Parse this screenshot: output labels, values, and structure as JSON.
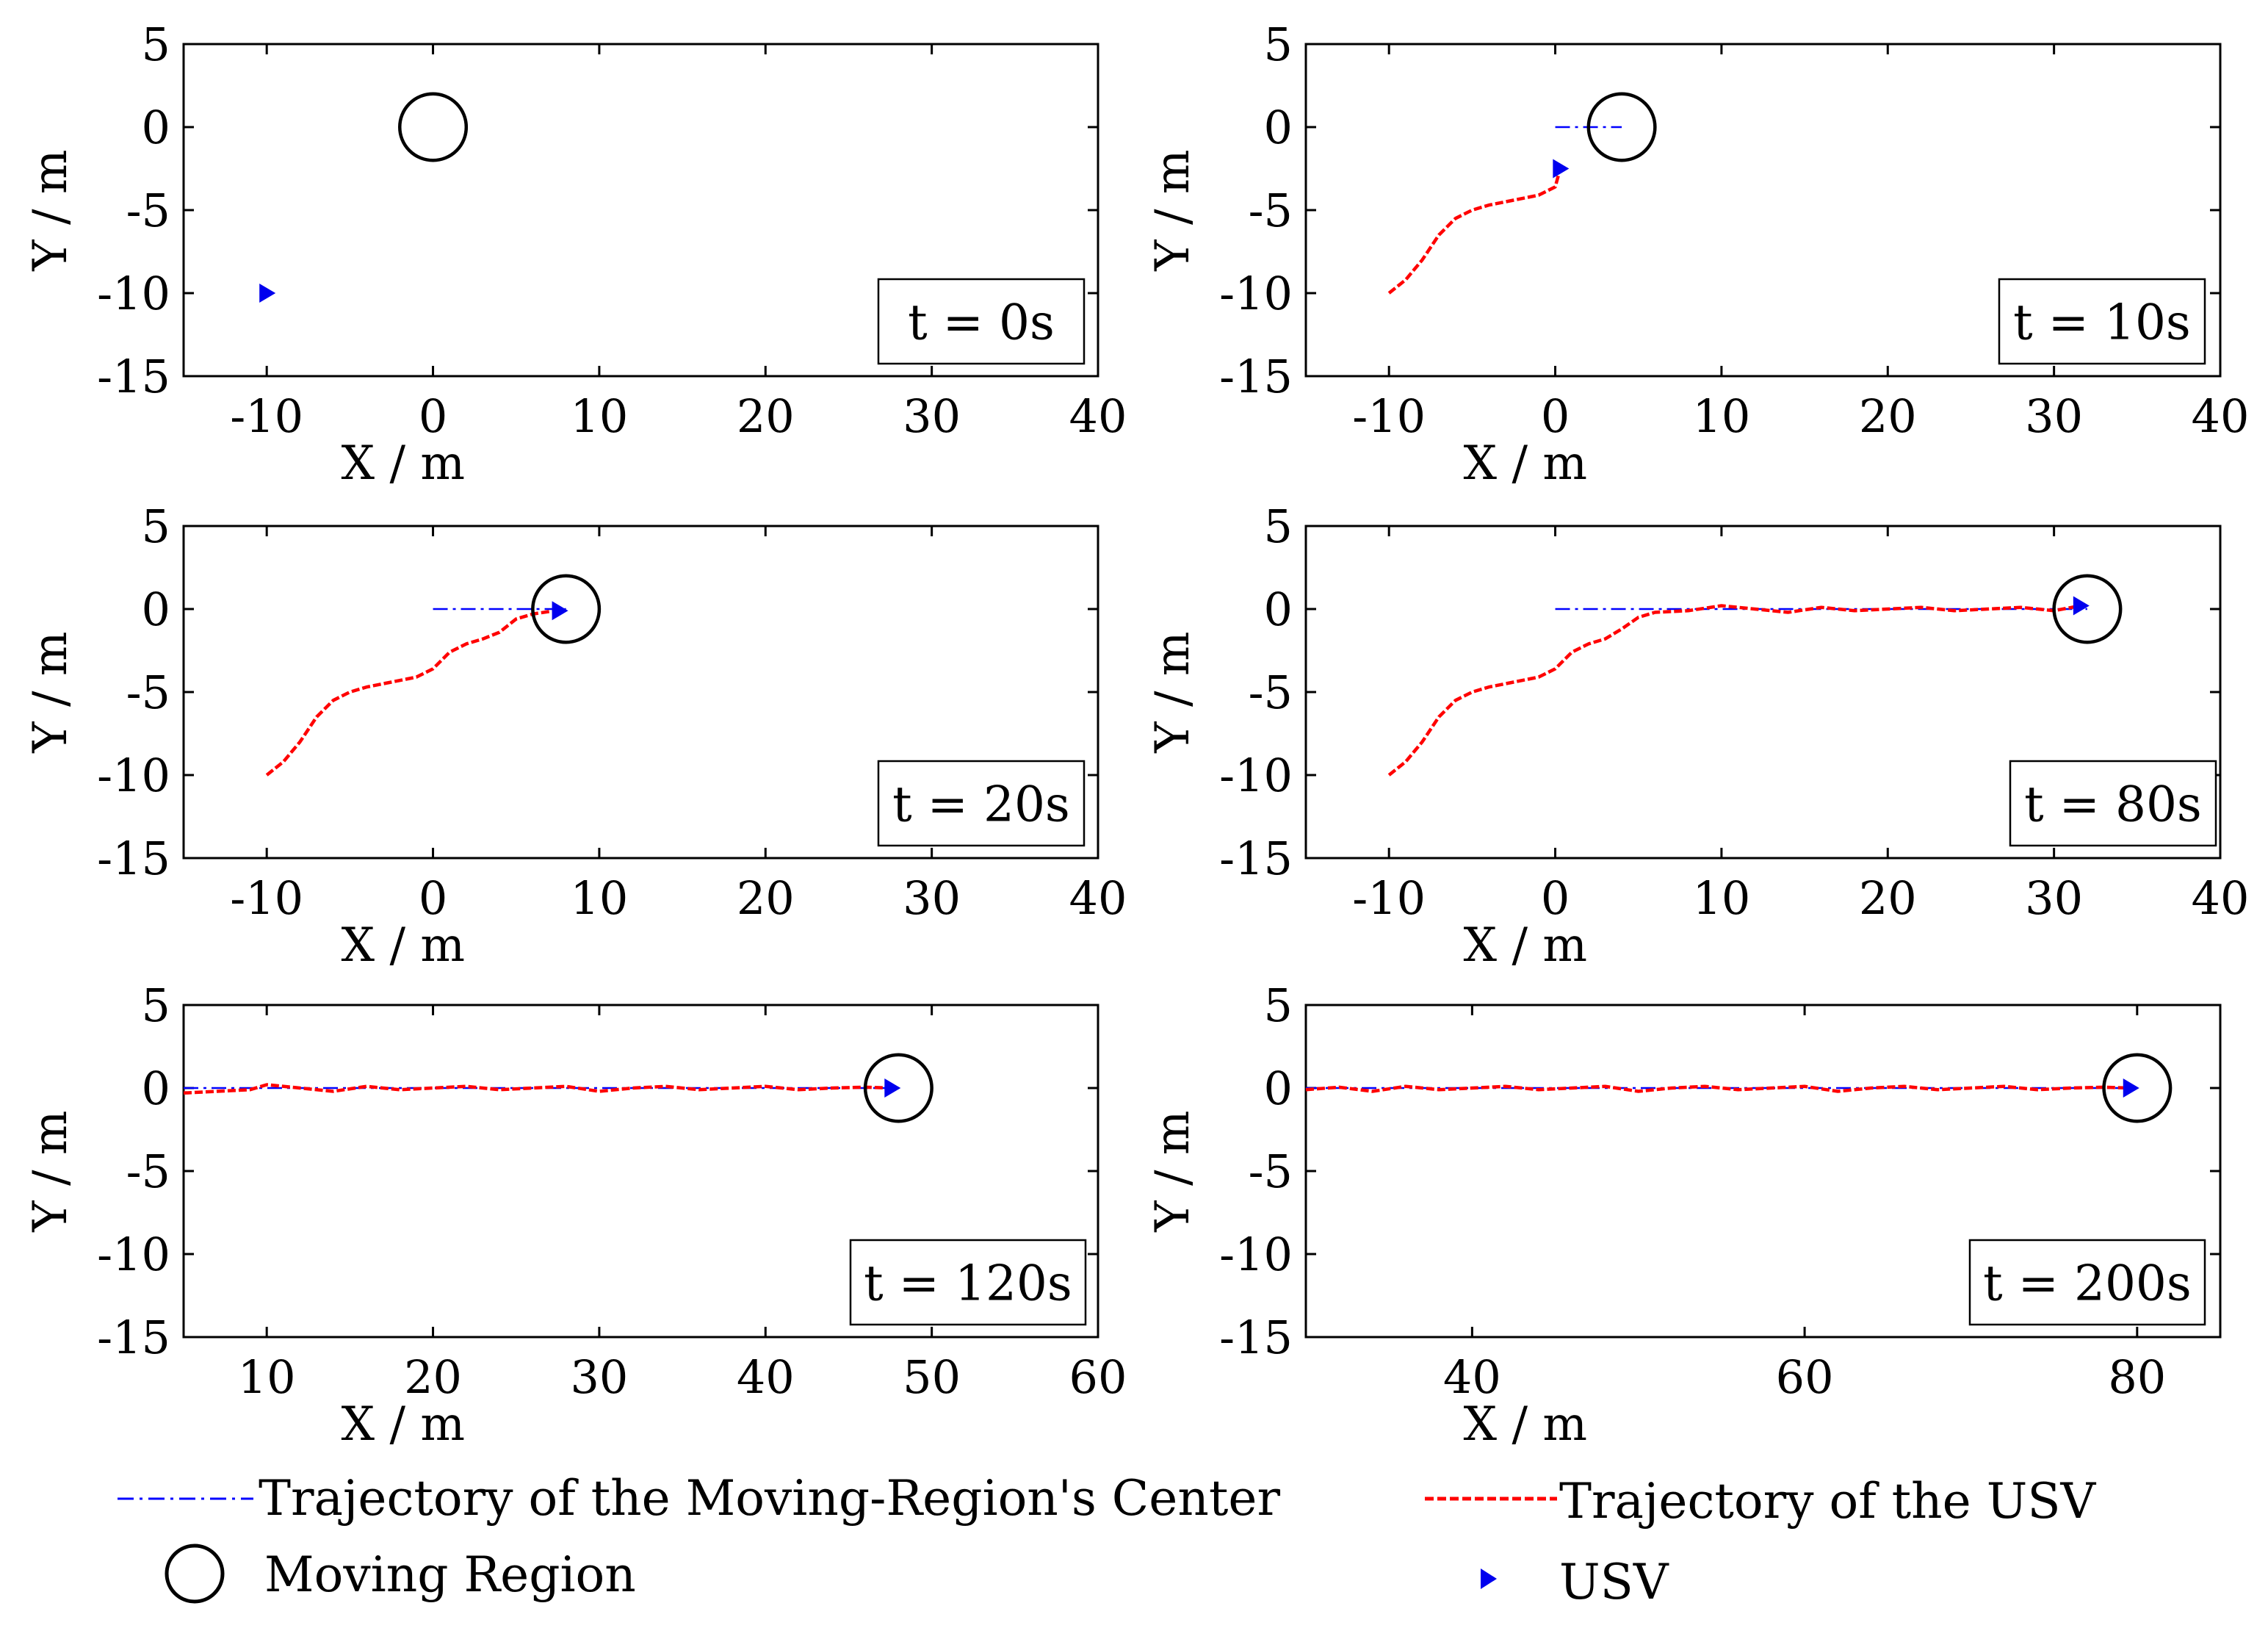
{
  "chart_data": [
    {
      "type": "line",
      "panel": "t0",
      "time_label": "t = 0s",
      "xlabel": "X / m",
      "ylabel": "Y / m",
      "xlim": [
        -15,
        40
      ],
      "ylim": [
        -15,
        5
      ],
      "xticks": [
        -10,
        0,
        10,
        20,
        30,
        40
      ],
      "yticks": [
        5,
        0,
        -5,
        -10,
        -15
      ],
      "region_center": [
        0,
        0
      ],
      "region_radius": 2,
      "center_trajectory": [],
      "usv_trajectory": [],
      "usv_position": [
        -10,
        -10
      ]
    },
    {
      "type": "line",
      "panel": "t10",
      "time_label": "t = 10s",
      "xlabel": "X / m",
      "ylabel": "Y / m",
      "xlim": [
        -15,
        40
      ],
      "ylim": [
        -15,
        5
      ],
      "xticks": [
        -10,
        0,
        10,
        20,
        30,
        40
      ],
      "yticks": [
        5,
        0,
        -5,
        -10,
        -15
      ],
      "region_center": [
        4,
        0
      ],
      "region_radius": 2,
      "center_trajectory": [
        [
          0,
          0
        ],
        [
          4,
          0
        ]
      ],
      "usv_trajectory": [
        [
          -10,
          -10
        ],
        [
          -9,
          -9.2
        ],
        [
          -8,
          -8
        ],
        [
          -7,
          -6.5
        ],
        [
          -6,
          -5.5
        ],
        [
          -5,
          -5
        ],
        [
          -4,
          -4.7
        ],
        [
          -3,
          -4.5
        ],
        [
          -2,
          -4.3
        ],
        [
          -1,
          -4.1
        ],
        [
          0,
          -3.6
        ],
        [
          0.3,
          -2.5
        ]
      ],
      "usv_position": [
        0.3,
        -2.5
      ]
    },
    {
      "type": "line",
      "panel": "t20",
      "time_label": "t = 20s",
      "xlabel": "X / m",
      "ylabel": "Y / m",
      "xlim": [
        -15,
        40
      ],
      "ylim": [
        -15,
        5
      ],
      "xticks": [
        -10,
        0,
        10,
        20,
        30,
        40
      ],
      "yticks": [
        5,
        0,
        -5,
        -10,
        -15
      ],
      "region_center": [
        8,
        0
      ],
      "region_radius": 2,
      "center_trajectory": [
        [
          0,
          0
        ],
        [
          8,
          0
        ]
      ],
      "usv_trajectory": [
        [
          -10,
          -10
        ],
        [
          -9,
          -9.2
        ],
        [
          -8,
          -8
        ],
        [
          -7,
          -6.5
        ],
        [
          -6,
          -5.5
        ],
        [
          -5,
          -5
        ],
        [
          -4,
          -4.7
        ],
        [
          -3,
          -4.5
        ],
        [
          -2,
          -4.3
        ],
        [
          -1,
          -4.1
        ],
        [
          0,
          -3.6
        ],
        [
          1,
          -2.6
        ],
        [
          2,
          -2.1
        ],
        [
          3,
          -1.8
        ],
        [
          4,
          -1.4
        ],
        [
          5,
          -0.6
        ],
        [
          6,
          -0.3
        ],
        [
          7,
          -0.15
        ],
        [
          7.6,
          -0.1
        ]
      ],
      "usv_position": [
        7.6,
        -0.1
      ]
    },
    {
      "type": "line",
      "panel": "t80",
      "time_label": "t = 80s",
      "xlabel": "X / m",
      "ylabel": "Y / m",
      "xlim": [
        -15,
        40
      ],
      "ylim": [
        -15,
        5
      ],
      "xticks": [
        -10,
        0,
        10,
        20,
        30,
        40
      ],
      "yticks": [
        5,
        0,
        -5,
        -10,
        -15
      ],
      "region_center": [
        32,
        0
      ],
      "region_radius": 2,
      "center_trajectory": [
        [
          0,
          0
        ],
        [
          32,
          0
        ]
      ],
      "usv_trajectory": [
        [
          -10,
          -10
        ],
        [
          -9,
          -9.2
        ],
        [
          -8,
          -8
        ],
        [
          -7,
          -6.5
        ],
        [
          -6,
          -5.5
        ],
        [
          -5,
          -5
        ],
        [
          -4,
          -4.7
        ],
        [
          -3,
          -4.5
        ],
        [
          -2,
          -4.3
        ],
        [
          -1,
          -4.1
        ],
        [
          0,
          -3.6
        ],
        [
          1,
          -2.6
        ],
        [
          2,
          -2.1
        ],
        [
          3,
          -1.8
        ],
        [
          4,
          -1.2
        ],
        [
          5,
          -0.5
        ],
        [
          6,
          -0.2
        ],
        [
          8,
          -0.1
        ],
        [
          10,
          0.2
        ],
        [
          12,
          0
        ],
        [
          14,
          -0.2
        ],
        [
          16,
          0.1
        ],
        [
          18,
          -0.1
        ],
        [
          20,
          0
        ],
        [
          22,
          0.1
        ],
        [
          24,
          -0.1
        ],
        [
          26,
          0
        ],
        [
          28,
          0.1
        ],
        [
          30,
          -0.1
        ],
        [
          31.6,
          0.2
        ]
      ],
      "usv_position": [
        31.6,
        0.2
      ]
    },
    {
      "type": "line",
      "panel": "t120",
      "time_label": "t = 120s",
      "xlabel": "X / m",
      "ylabel": "Y / m",
      "xlim": [
        5,
        60
      ],
      "ylim": [
        -15,
        5
      ],
      "xticks": [
        10,
        20,
        30,
        40,
        50,
        60
      ],
      "yticks": [
        5,
        0,
        -5,
        -10,
        -15
      ],
      "region_center": [
        48,
        0
      ],
      "region_radius": 2,
      "center_trajectory": [
        [
          5,
          0
        ],
        [
          48,
          0
        ]
      ],
      "usv_trajectory": [
        [
          5,
          -0.3
        ],
        [
          7,
          -0.2
        ],
        [
          9,
          -0.1
        ],
        [
          10,
          0.2
        ],
        [
          12,
          0
        ],
        [
          14,
          -0.2
        ],
        [
          16,
          0.1
        ],
        [
          18,
          -0.1
        ],
        [
          20,
          0
        ],
        [
          22,
          0.1
        ],
        [
          24,
          -0.1
        ],
        [
          26,
          0
        ],
        [
          28,
          0.1
        ],
        [
          30,
          -0.2
        ],
        [
          32,
          0
        ],
        [
          34,
          0.1
        ],
        [
          36,
          -0.1
        ],
        [
          38,
          0
        ],
        [
          40,
          0.1
        ],
        [
          42,
          -0.1
        ],
        [
          44,
          0
        ],
        [
          46,
          0.05
        ],
        [
          47.6,
          0
        ]
      ],
      "usv_position": [
        47.6,
        0
      ]
    },
    {
      "type": "line",
      "panel": "t200",
      "time_label": "t = 200s",
      "xlabel": "X / m",
      "ylabel": "Y / m",
      "xlim": [
        30,
        85
      ],
      "ylim": [
        -15,
        5
      ],
      "xticks": [
        40,
        60,
        80
      ],
      "yticks": [
        5,
        0,
        -5,
        -10,
        -15
      ],
      "region_center": [
        80,
        0
      ],
      "region_radius": 2,
      "center_trajectory": [
        [
          30,
          0
        ],
        [
          80,
          0
        ]
      ],
      "usv_trajectory": [
        [
          30,
          -0.1
        ],
        [
          32,
          0.05
        ],
        [
          34,
          -0.2
        ],
        [
          36,
          0.1
        ],
        [
          38,
          -0.1
        ],
        [
          40,
          0
        ],
        [
          42,
          0.1
        ],
        [
          44,
          -0.1
        ],
        [
          46,
          0
        ],
        [
          48,
          0.1
        ],
        [
          50,
          -0.2
        ],
        [
          52,
          0
        ],
        [
          54,
          0.1
        ],
        [
          56,
          -0.1
        ],
        [
          58,
          0
        ],
        [
          60,
          0.1
        ],
        [
          62,
          -0.2
        ],
        [
          64,
          0
        ],
        [
          66,
          0.1
        ],
        [
          68,
          -0.1
        ],
        [
          70,
          0
        ],
        [
          72,
          0.1
        ],
        [
          74,
          -0.1
        ],
        [
          76,
          0
        ],
        [
          78,
          0.05
        ],
        [
          79.6,
          0
        ]
      ],
      "usv_position": [
        79.6,
        0
      ]
    }
  ],
  "legend": {
    "center_trajectory_label": "Trajectory of the Moving-Region's Center",
    "usv_trajectory_label": "Trajectory of the USV",
    "region_label": "Moving Region",
    "usv_label": "USV"
  },
  "colors": {
    "center_trajectory": "#0000ff",
    "usv_trajectory": "#ff0000",
    "usv_marker": "#0000ee",
    "region": "#000000",
    "axes": "#000000"
  }
}
